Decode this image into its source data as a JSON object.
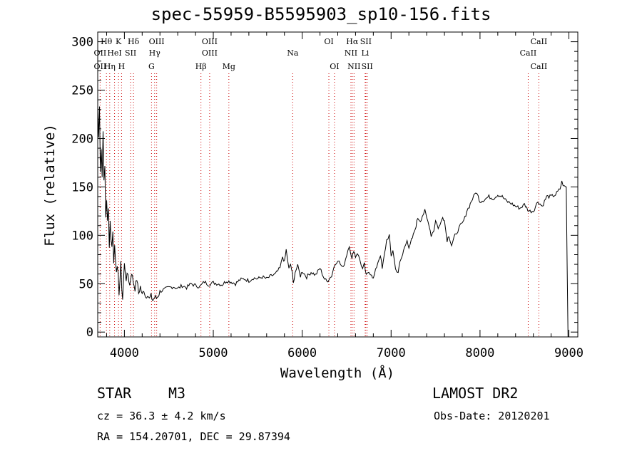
{
  "title": "spec-55959-B5595903_sp10-156.fits",
  "info": {
    "object_class": "STAR",
    "subclass": "M3",
    "survey": "LAMOST DR2",
    "cz": "cz = 36.3 ± 4.2 km/s",
    "obs_date": "Obs-Date: 20120201",
    "coords": "RA = 154.20701, DEC =  29.87394"
  },
  "chart_data": {
    "type": "line",
    "xlabel": "Wavelength (Å)",
    "ylabel": "Flux (relative)",
    "xlim": [
      3700,
      9100
    ],
    "ylim": [
      -5,
      310
    ],
    "xticks": [
      4000,
      5000,
      6000,
      7000,
      8000,
      9000
    ],
    "yticks": [
      0,
      50,
      100,
      150,
      200,
      250,
      300
    ],
    "grid": false,
    "series_color": "#000000",
    "line_marker_color": "#cc0000",
    "series": [
      {
        "x": [
          3700,
          3710,
          3720,
          3730,
          3740,
          3750,
          3760,
          3770,
          3780,
          3790,
          3800,
          3810,
          3820,
          3830,
          3840,
          3850,
          3860,
          3870,
          3880,
          3890,
          3900,
          3920,
          3940,
          3960,
          3980,
          4000,
          4020,
          4040,
          4060,
          4080,
          4100,
          4120,
          4140,
          4160,
          4180,
          4200,
          4220,
          4240,
          4260,
          4280,
          4300,
          4320,
          4340,
          4360,
          4380,
          4400,
          4450,
          4500,
          4550,
          4600,
          4650,
          4700,
          4750,
          4800,
          4850,
          4900,
          4950,
          5000,
          5050,
          5100,
          5150,
          5200,
          5250,
          5300,
          5350,
          5400,
          5450,
          5500,
          5550,
          5600,
          5650,
          5700,
          5750,
          5780,
          5800,
          5820,
          5850,
          5870,
          5890,
          5900,
          5920,
          5950,
          5980,
          6000,
          6050,
          6100,
          6150,
          6200,
          6250,
          6280,
          6300,
          6330,
          6360,
          6400,
          6430,
          6460,
          6500,
          6530,
          6560,
          6580,
          6600,
          6620,
          6650,
          6680,
          6700,
          6720,
          6750,
          6780,
          6800,
          6850,
          6880,
          6900,
          6950,
          6980,
          7000,
          7020,
          7050,
          7080,
          7100,
          7130,
          7150,
          7180,
          7200,
          7230,
          7250,
          7280,
          7300,
          7330,
          7350,
          7380,
          7400,
          7430,
          7450,
          7480,
          7500,
          7530,
          7550,
          7580,
          7600,
          7630,
          7650,
          7680,
          7700,
          7720,
          7750,
          7780,
          7800,
          7830,
          7850,
          7880,
          7900,
          7930,
          7950,
          7980,
          8000,
          8050,
          8100,
          8150,
          8200,
          8250,
          8300,
          8350,
          8400,
          8450,
          8500,
          8550,
          8600,
          8650,
          8700,
          8750,
          8800,
          8850,
          8900,
          8920,
          8950,
          8970,
          8990
        ],
        "y": [
          235,
          200,
          240,
          170,
          190,
          160,
          215,
          150,
          170,
          120,
          140,
          110,
          125,
          95,
          115,
          100,
          85,
          110,
          70,
          90,
          80,
          60,
          45,
          65,
          35,
          70,
          55,
          60,
          48,
          62,
          52,
          45,
          55,
          40,
          47,
          38,
          44,
          36,
          40,
          34,
          37,
          33,
          36,
          35,
          38,
          42,
          44,
          46,
          47,
          45,
          48,
          46,
          50,
          48,
          47,
          52,
          49,
          51,
          50,
          49,
          53,
          52,
          50,
          54,
          55,
          53,
          56,
          55,
          57,
          55,
          58,
          60,
          66,
          78,
          72,
          85,
          65,
          70,
          60,
          50,
          62,
          68,
          58,
          63,
          57,
          62,
          59,
          66,
          55,
          52,
          55,
          58,
          68,
          75,
          70,
          66,
          80,
          90,
          75,
          85,
          78,
          82,
          74,
          65,
          70,
          58,
          62,
          60,
          55,
          72,
          80,
          65,
          95,
          100,
          78,
          85,
          65,
          62,
          72,
          80,
          88,
          96,
          85,
          95,
          100,
          110,
          118,
          115,
          120,
          125,
          118,
          110,
          100,
          105,
          115,
          108,
          110,
          120,
          115,
          95,
          100,
          90,
          95,
          100,
          105,
          110,
          112,
          118,
          125,
          130,
          135,
          140,
          145,
          140,
          135,
          137,
          140,
          138,
          142,
          140,
          135,
          133,
          130,
          128,
          132,
          125,
          125,
          135,
          130,
          140,
          140,
          142,
          148,
          155,
          150,
          150,
          -5
        ]
      }
    ],
    "lines": [
      {
        "label": "Hθ",
        "wl": 3798,
        "row": 1
      },
      {
        "label": "K",
        "wl": 3934,
        "row": 1
      },
      {
        "label": "Hδ",
        "wl": 4102,
        "row": 1
      },
      {
        "label": "OIII",
        "wl": 4363,
        "row": 1
      },
      {
        "label": "OIII",
        "wl": 4959,
        "row": 1
      },
      {
        "label": "OI",
        "wl": 6300,
        "row": 1
      },
      {
        "label": "Hα",
        "wl": 6563,
        "row": 1
      },
      {
        "label": "SII",
        "wl": 6716,
        "row": 1
      },
      {
        "label": "CaII",
        "wl": 8662,
        "row": 1
      },
      {
        "label": "OII",
        "wl": 3727,
        "row": 2
      },
      {
        "label": "HeI",
        "wl": 3889,
        "row": 2
      },
      {
        "label": "SII",
        "wl": 4070,
        "row": 2
      },
      {
        "label": "Hγ",
        "wl": 4340,
        "row": 2
      },
      {
        "label": "OIII",
        "wl": 4959,
        "row": 2
      },
      {
        "label": "Na",
        "wl": 5893,
        "row": 2
      },
      {
        "label": "NII",
        "wl": 6548,
        "row": 2
      },
      {
        "label": "Li",
        "wl": 6708,
        "row": 2
      },
      {
        "label": "CaII",
        "wl": 8542,
        "row": 2
      },
      {
        "label": "OII",
        "wl": 3727,
        "row": 3
      },
      {
        "label": "Hη",
        "wl": 3835,
        "row": 3
      },
      {
        "label": "H",
        "wl": 3968,
        "row": 3
      },
      {
        "label": "G",
        "wl": 4305,
        "row": 3
      },
      {
        "label": "Hβ",
        "wl": 4861,
        "row": 3
      },
      {
        "label": "Mg",
        "wl": 5175,
        "row": 3
      },
      {
        "label": "OI",
        "wl": 6363,
        "row": 3
      },
      {
        "label": "NII",
        "wl": 6583,
        "row": 3
      },
      {
        "label": "SII",
        "wl": 6731,
        "row": 3
      },
      {
        "label": "CaII",
        "wl": 8662,
        "row": 3
      }
    ]
  }
}
